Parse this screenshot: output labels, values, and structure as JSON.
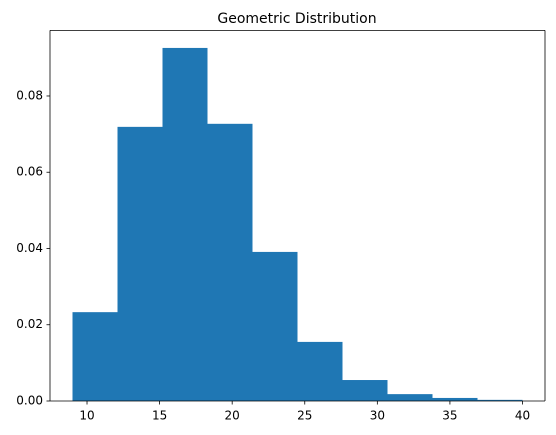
{
  "chart_data": {
    "type": "histogram",
    "title": "Geometric Distribution",
    "bins": [
      9,
      12.1,
      15.2,
      18.3,
      21.4,
      24.5,
      27.6,
      30.7,
      33.8,
      36.9,
      40
    ],
    "values": [
      0.0233,
      0.0719,
      0.0926,
      0.0727,
      0.0391,
      0.0155,
      0.0055,
      0.0018,
      0.0008,
      0.0003
    ],
    "color": "#1f77b4",
    "xlim": [
      7.45,
      41.55
    ],
    "xticks": [
      10,
      15,
      20,
      25,
      30,
      35,
      40
    ],
    "ylim": [
      0,
      0.0972
    ],
    "yticks": [
      {
        "value": 0,
        "label": "0.00"
      },
      {
        "value": 0.02,
        "label": "0.02"
      },
      {
        "value": 0.04,
        "label": "0.04"
      },
      {
        "value": 0.06,
        "label": "0.06"
      },
      {
        "value": 0.08,
        "label": "0.08"
      }
    ]
  }
}
